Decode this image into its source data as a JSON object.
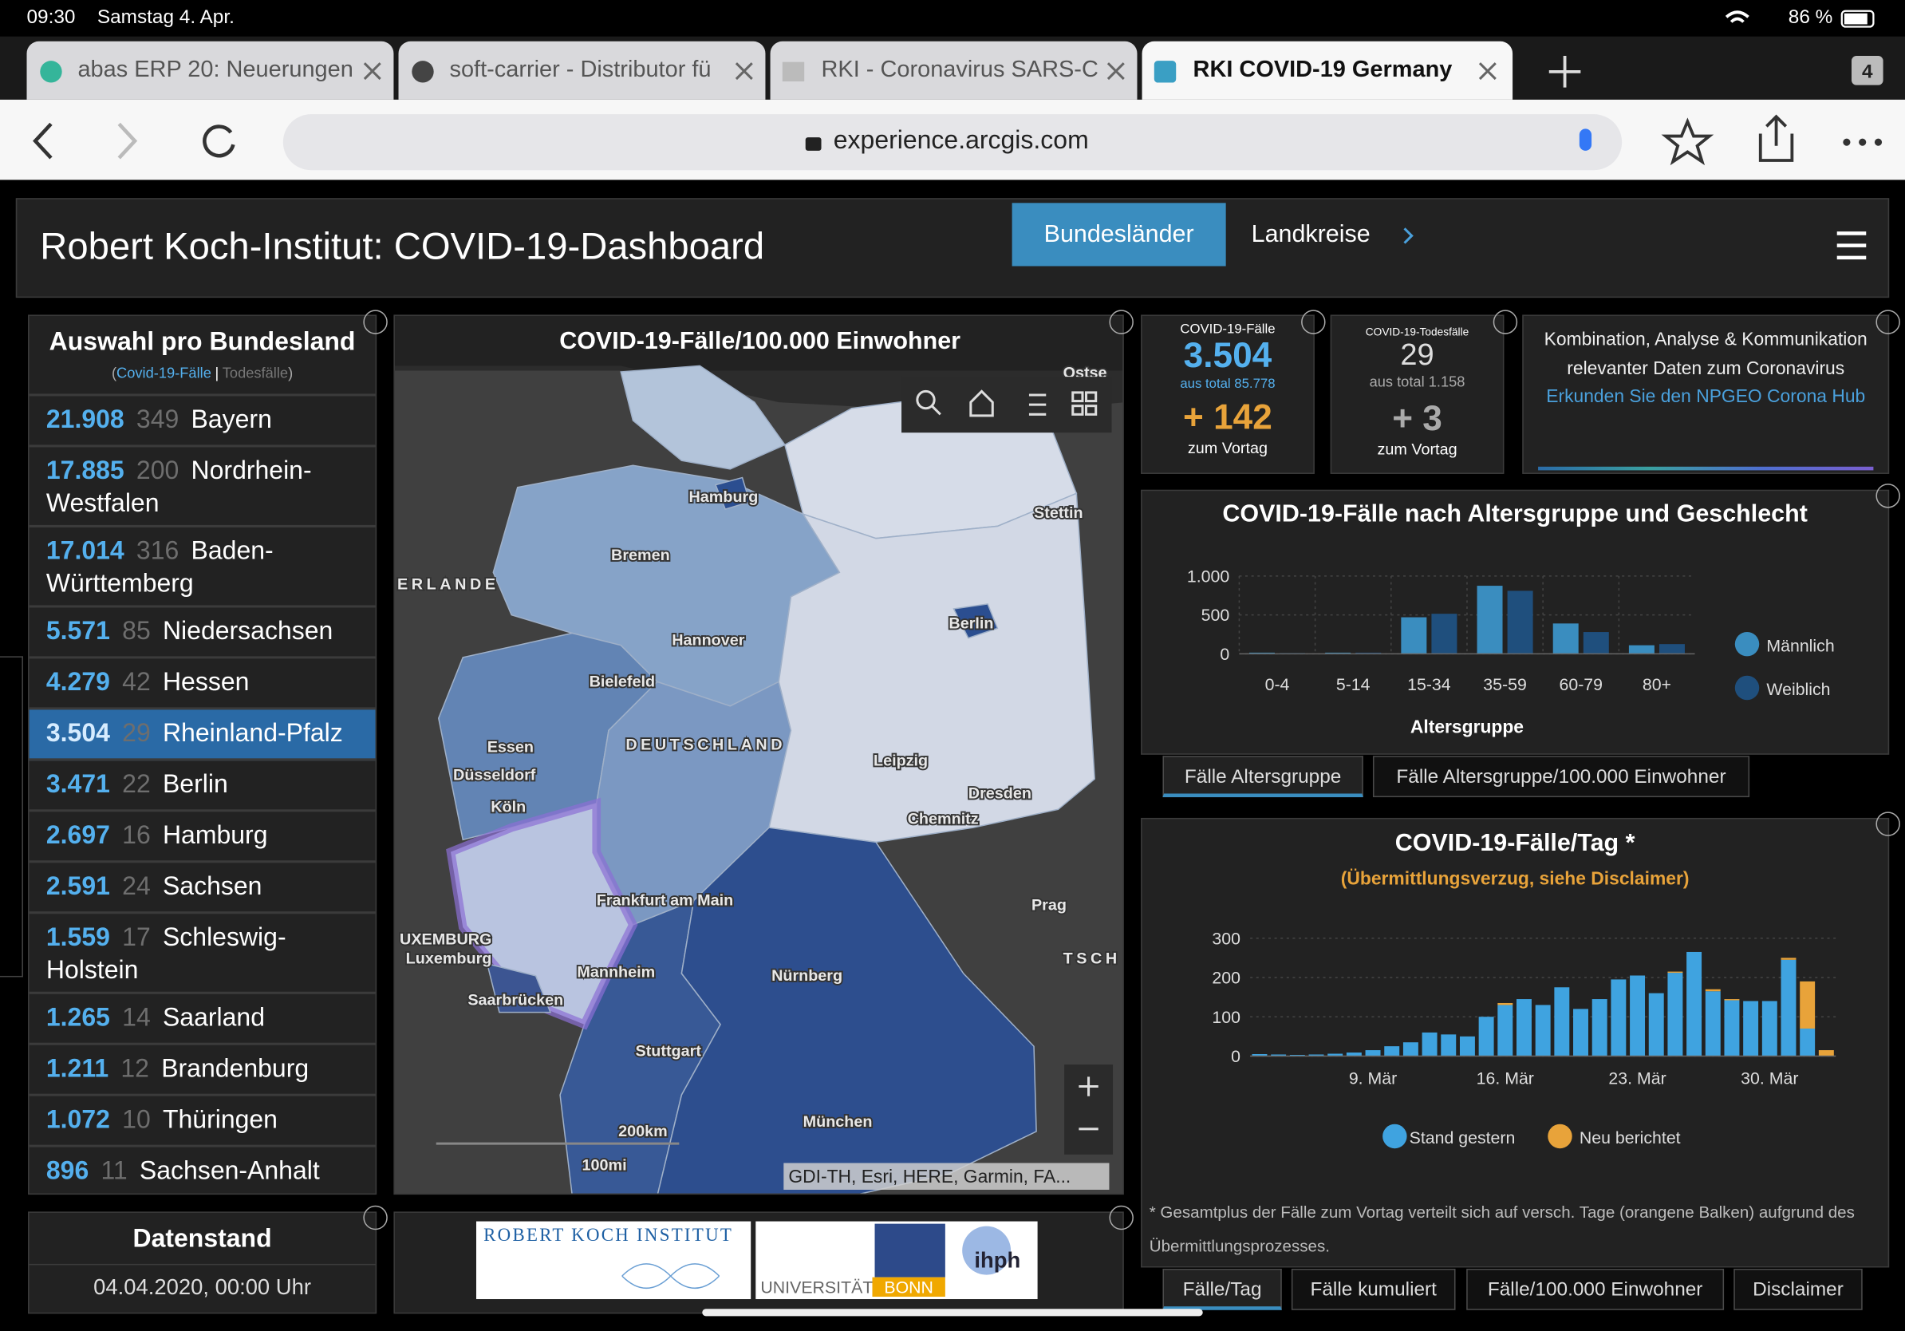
{
  "status_bar": {
    "time": "09:30",
    "date": "Samstag 4. Apr.",
    "battery": "86 %"
  },
  "browser": {
    "tabs": [
      "abas ERP 20: Neuerungen",
      "soft-carrier - Distributor fü",
      "RKI - Coronavirus SARS-C",
      "RKI COVID-19 Germany"
    ],
    "tab_count": 4,
    "url": "experience.arcgis.com"
  },
  "header": {
    "title": "Robert Koch-Institut: COVID-19-Dashboard",
    "nav": [
      "Bundesländer",
      "Landkreise"
    ]
  },
  "state_list": {
    "title": "Auswahl pro Bundesland",
    "legend": [
      "(",
      "Covid-19-Fälle",
      "|",
      "Todesfälle",
      ")"
    ],
    "rows": [
      {
        "cases": "21.908",
        "deaths": "349",
        "name": "Bayern"
      },
      {
        "cases": "17.885",
        "deaths": "200",
        "name": "Nordrhein-Westfalen"
      },
      {
        "cases": "17.014",
        "deaths": "316",
        "name": "Baden-Württemberg"
      },
      {
        "cases": "5.571",
        "deaths": "85",
        "name": "Niedersachsen"
      },
      {
        "cases": "4.279",
        "deaths": "42",
        "name": "Hessen"
      },
      {
        "cases": "3.504",
        "deaths": "29",
        "name": "Rheinland-Pfalz"
      },
      {
        "cases": "3.471",
        "deaths": "22",
        "name": "Berlin"
      },
      {
        "cases": "2.697",
        "deaths": "16",
        "name": "Hamburg"
      },
      {
        "cases": "2.591",
        "deaths": "24",
        "name": "Sachsen"
      },
      {
        "cases": "1.559",
        "deaths": "17",
        "name": "Schleswig-Holstein"
      },
      {
        "cases": "1.265",
        "deaths": "14",
        "name": "Saarland"
      },
      {
        "cases": "1.211",
        "deaths": "12",
        "name": "Brandenburg"
      },
      {
        "cases": "1.072",
        "deaths": "10",
        "name": "Thüringen"
      },
      {
        "cases": "896",
        "deaths": "11",
        "name": "Sachsen-Anhalt"
      }
    ]
  },
  "datenstand": {
    "title": "Datenstand",
    "value": "04.04.2020, 00:00 Uhr"
  },
  "map": {
    "title": "COVID-19-Fälle/100.000 Einwohner",
    "labels": [
      "Hamburg",
      "Bremen",
      "Hannover",
      "Bielefeld",
      "Berlin",
      "Stettin",
      "Essen",
      "Düsseldorf",
      "Köln",
      "DEUTSCHLAND",
      "Leipzig",
      "Dresden",
      "Chemnitz",
      "Frankfurt am Main",
      "Mannheim",
      "Nürnberg",
      "Prag",
      "Stuttgart",
      "München",
      "Saarbrücken",
      "UXEMBURG",
      "Luxemburg",
      "ERLANDE",
      "Ostse",
      "TSCH"
    ],
    "scale": [
      "200km",
      "100mi"
    ],
    "attribution": "GDI-TH, Esri, HERE, Garmin, FA..."
  },
  "logos": {
    "rki": "ROBERT KOCH INSTITUT",
    "uni": "UNIVERSITÄT",
    "bonn": "BONN",
    "ihph": "ihph"
  },
  "cards": [
    {
      "label": "COVID-19-Fälle",
      "value": "3.504",
      "sub": "aus total 85.778",
      "delta": "+ 142",
      "delta_label": "zum Vortag"
    },
    {
      "label": "COVID-19-Todesfälle",
      "value": "29",
      "sub": "aus total 1.158",
      "delta": "+ 3",
      "delta_label": "zum Vortag"
    }
  ],
  "hub": {
    "text": "Kombination, Analyse & Kommunikation relevanter Daten zum Coronavirus",
    "link": "Erkunden Sie den NPGEO Corona Hub"
  },
  "age_chart": {
    "type": "bar",
    "title": "COVID-19-Fälle nach Altersgruppe und Geschlecht",
    "x_label": "Altersgruppe",
    "categories": [
      "0-4",
      "5-14",
      "15-34",
      "35-59",
      "60-79",
      "80+"
    ],
    "series": [
      {
        "name": "Männlich",
        "color": "#3a8dbf",
        "values": [
          15,
          15,
          470,
          875,
          390,
          110
        ]
      },
      {
        "name": "Weiblich",
        "color": "#1f4f7d",
        "values": [
          10,
          15,
          515,
          810,
          280,
          125
        ]
      }
    ],
    "ylim": [
      0,
      1000
    ],
    "yticks": [
      0,
      500,
      {
        "value": 1000,
        "label": "1.000"
      }
    ],
    "tabs": [
      "Fälle Altersgruppe",
      "Fälle Altersgruppe/100.000 Einwohner"
    ]
  },
  "daily_chart": {
    "type": "stacked-bar",
    "title": "COVID-19-Fälle/Tag *",
    "subtitle": "(Übermittlungsverzug, siehe Disclaimer)",
    "categories": [
      null,
      null,
      null,
      null,
      null,
      null,
      "9. Mär",
      null,
      null,
      null,
      null,
      null,
      null,
      "16. Mär",
      null,
      null,
      null,
      null,
      null,
      null,
      "23. Mär",
      null,
      null,
      null,
      null,
      null,
      null,
      "30. Mär",
      null,
      null,
      null
    ],
    "series": [
      {
        "name": "Stand gestern",
        "color": "#3fa3e0",
        "values": [
          5,
          4,
          3,
          4,
          6,
          9,
          15,
          25,
          35,
          60,
          55,
          50,
          100,
          130,
          145,
          130,
          175,
          120,
          145,
          195,
          205,
          160,
          212,
          265,
          165,
          142,
          140,
          140,
          245,
          70,
          0
        ]
      },
      {
        "name": "Neu berichtet",
        "color": "#e8a33a",
        "values": [
          0,
          0,
          0,
          0,
          0,
          0,
          0,
          0,
          0,
          0,
          0,
          0,
          0,
          5,
          0,
          0,
          0,
          0,
          0,
          0,
          0,
          0,
          3,
          0,
          5,
          3,
          0,
          0,
          5,
          120,
          15
        ]
      }
    ],
    "ylim": [
      0,
      300
    ],
    "yticks": [
      0,
      100,
      200,
      300
    ],
    "footnote": "* Gesamtplus der Fälle zum Vortag verteilt sich auf versch. Tage (orangene Balken) aufgrund des Übermittlungsprozesses.",
    "tabs": [
      "Fälle/Tag",
      "Fälle kumuliert",
      "Fälle/100.000 Einwohner",
      "Disclaimer"
    ]
  }
}
